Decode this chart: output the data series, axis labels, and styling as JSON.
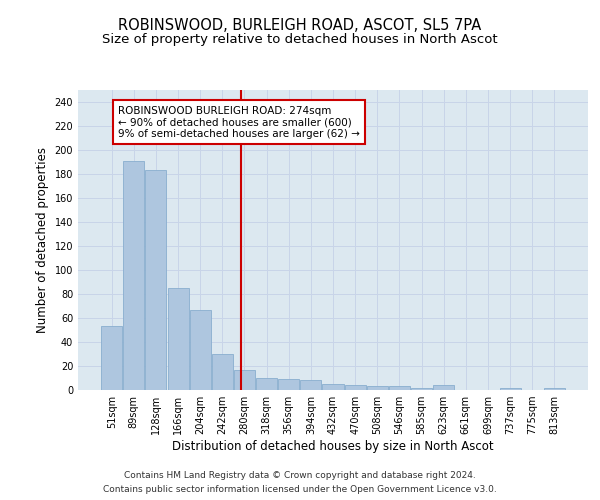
{
  "title": "ROBINSWOOD, BURLEIGH ROAD, ASCOT, SL5 7PA",
  "subtitle": "Size of property relative to detached houses in North Ascot",
  "xlabel": "Distribution of detached houses by size in North Ascot",
  "ylabel": "Number of detached properties",
  "footer_line1": "Contains HM Land Registry data © Crown copyright and database right 2024.",
  "footer_line2": "Contains public sector information licensed under the Open Government Licence v3.0.",
  "bar_labels": [
    "51sqm",
    "89sqm",
    "128sqm",
    "166sqm",
    "204sqm",
    "242sqm",
    "280sqm",
    "318sqm",
    "356sqm",
    "394sqm",
    "432sqm",
    "470sqm",
    "508sqm",
    "546sqm",
    "585sqm",
    "623sqm",
    "661sqm",
    "699sqm",
    "737sqm",
    "775sqm",
    "813sqm"
  ],
  "bar_values": [
    53,
    191,
    183,
    85,
    67,
    30,
    17,
    10,
    9,
    8,
    5,
    4,
    3,
    3,
    2,
    4,
    0,
    0,
    2,
    0,
    2
  ],
  "bar_color": "#aec6df",
  "bar_edgecolor": "#89aecf",
  "vline_color": "#cc0000",
  "annotation_text": "ROBINSWOOD BURLEIGH ROAD: 274sqm\n← 90% of detached houses are smaller (600)\n9% of semi-detached houses are larger (62) →",
  "annotation_box_facecolor": "#ffffff",
  "annotation_box_edgecolor": "#cc0000",
  "ylim": [
    0,
    250
  ],
  "yticks": [
    0,
    20,
    40,
    60,
    80,
    100,
    120,
    140,
    160,
    180,
    200,
    220,
    240
  ],
  "grid_color": "#c8d4e8",
  "bg_color": "#dce8f0",
  "title_fontsize": 10.5,
  "subtitle_fontsize": 9.5,
  "xlabel_fontsize": 8.5,
  "ylabel_fontsize": 8.5,
  "tick_fontsize": 7,
  "annotation_fontsize": 7.5,
  "footer_fontsize": 6.5
}
